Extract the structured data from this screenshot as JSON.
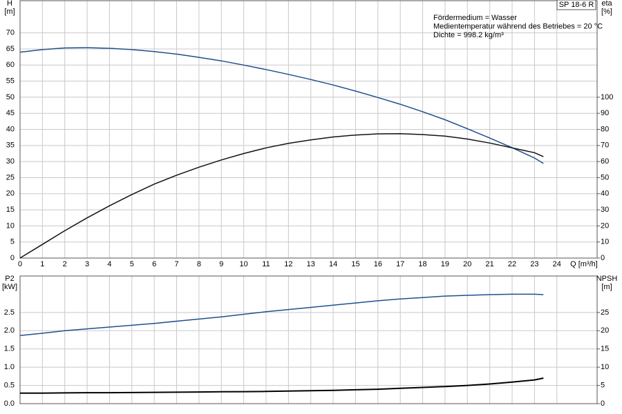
{
  "chart_data": [
    {
      "type": "line",
      "annotations": [
        "Fördermedium = Wasser",
        "Medientemperatur während des Betriebes = 20 °C",
        "Dichte = 998.2 kg/m³"
      ],
      "label": "SP 18-6 R",
      "x_label": "Q [m³/h]",
      "y_label": [
        "H",
        "[m]"
      ],
      "y2_label": [
        "eta",
        "[%]"
      ],
      "x": [
        0,
        1,
        2,
        3,
        4,
        5,
        6,
        7,
        8,
        9,
        10,
        11,
        12,
        13,
        14,
        15,
        16,
        17,
        18,
        19,
        20,
        21,
        22,
        23,
        23.4
      ],
      "xlim": [
        0,
        25.8
      ],
      "xticks": [
        0,
        1,
        2,
        3,
        4,
        5,
        6,
        7,
        8,
        9,
        10,
        11,
        12,
        13,
        14,
        15,
        16,
        17,
        18,
        19,
        20,
        21,
        22,
        23,
        24
      ],
      "ylim": [
        0,
        80
      ],
      "yticks": [
        0,
        5,
        10,
        15,
        20,
        25,
        30,
        35,
        40,
        45,
        50,
        55,
        60,
        65,
        70
      ],
      "y2lim": [
        0,
        160
      ],
      "y2ticks": [
        0,
        10,
        20,
        30,
        40,
        50,
        60,
        70,
        80,
        90,
        100
      ],
      "grid": true,
      "series": [
        {
          "name": "H",
          "color": "#1f4e8c",
          "values": [
            64,
            64.8,
            65.3,
            65.4,
            65.2,
            64.8,
            64.2,
            63.4,
            62.4,
            61.3,
            60.0,
            58.6,
            57.1,
            55.5,
            53.8,
            51.9,
            49.9,
            47.8,
            45.5,
            43.0,
            40.2,
            37.3,
            34.3,
            31.1,
            29.4
          ]
        },
        {
          "name": "eta",
          "color": "#111111",
          "axis": "y2",
          "values": [
            0,
            8.5,
            17,
            25,
            32.5,
            39.5,
            46,
            51.5,
            56.5,
            61,
            65,
            68.5,
            71.3,
            73.5,
            75.3,
            76.5,
            77.2,
            77.3,
            76.8,
            75.8,
            74,
            71.5,
            68.5,
            65.5,
            63
          ]
        }
      ]
    },
    {
      "type": "line",
      "y_label": [
        "P2",
        "[kW]"
      ],
      "y2_label": [
        "NPSH",
        "[m]"
      ],
      "x": [
        0,
        1,
        2,
        3,
        4,
        5,
        6,
        7,
        8,
        9,
        10,
        11,
        12,
        13,
        14,
        15,
        16,
        17,
        18,
        19,
        20,
        21,
        22,
        23,
        23.4
      ],
      "xlim": [
        0,
        25.8
      ],
      "ylim": [
        0,
        3.5
      ],
      "yticks": [
        {
          "value": 0,
          "label": "0.0"
        },
        0.5,
        {
          "value": 1,
          "label": "1.0"
        },
        1.5,
        {
          "value": 2,
          "label": "2.0"
        },
        2.5
      ],
      "y2lim": [
        0,
        35
      ],
      "y2ticks": [
        0,
        5,
        10,
        15,
        20,
        25
      ],
      "grid": true,
      "series": [
        {
          "name": "P2",
          "color": "#1f4e8c",
          "values": [
            1.87,
            1.93,
            2.0,
            2.05,
            2.1,
            2.15,
            2.2,
            2.26,
            2.32,
            2.38,
            2.45,
            2.52,
            2.58,
            2.64,
            2.7,
            2.76,
            2.82,
            2.87,
            2.91,
            2.95,
            2.97,
            2.99,
            3.0,
            3.0,
            2.99
          ]
        },
        {
          "name": "NPSH",
          "color": "#000000",
          "axis": "y2",
          "width": 2,
          "values": [
            2.9,
            2.9,
            2.95,
            3.0,
            3.0,
            3.05,
            3.1,
            3.15,
            3.2,
            3.25,
            3.3,
            3.35,
            3.45,
            3.55,
            3.65,
            3.8,
            3.95,
            4.2,
            4.45,
            4.7,
            5.0,
            5.4,
            5.9,
            6.5,
            7.0
          ]
        }
      ]
    }
  ]
}
